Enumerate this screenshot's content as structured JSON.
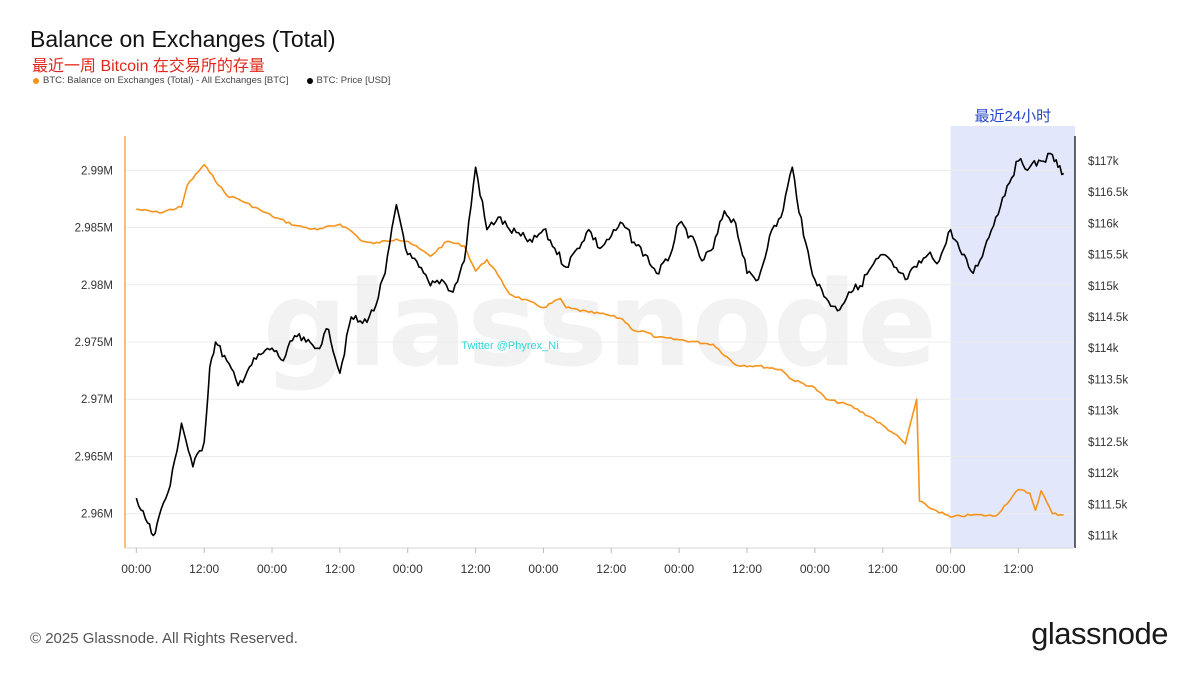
{
  "title": "Balance on Exchanges (Total)",
  "subtitle": "最近一周 Bitcoin 在交易所的存量",
  "footer": "© 2025 Glassnode. All Rights Reserved.",
  "brand": "glassnode",
  "watermark": "glassnode",
  "annotation_credit": "Twitter @Phyrex_Ni",
  "highlight_label": "最近24小时",
  "colors": {
    "balance": "#f7931a",
    "price": "#000000",
    "highlight": "#e3e7fb",
    "subtitle": "#e0281c",
    "highlight_label": "#2547c9",
    "credit": "#2fd6d6"
  },
  "chart_data": {
    "type": "line",
    "title": "Balance on Exchanges (Total)",
    "subtitle": "最近一周 Bitcoin 在交易所的存量",
    "x_tick_labels": [
      "00:00",
      "12:00",
      "00:00",
      "12:00",
      "00:00",
      "12:00",
      "00:00",
      "12:00",
      "00:00",
      "12:00",
      "00:00",
      "12:00",
      "00:00",
      "12:00"
    ],
    "x_range_hours": [
      -2,
      166
    ],
    "highlight_range_hours": [
      144,
      166
    ],
    "y_left": {
      "ticks": [
        2.96,
        2.965,
        2.97,
        2.975,
        2.98,
        2.985,
        2.99
      ],
      "tick_labels": [
        "2.96M",
        "2.965M",
        "2.97M",
        "2.975M",
        "2.98M",
        "2.985M",
        "2.99M"
      ],
      "range": [
        2.957,
        2.993
      ]
    },
    "y_right": {
      "ticks": [
        111000,
        111500,
        112000,
        112500,
        113000,
        113500,
        114000,
        114500,
        115000,
        115500,
        116000,
        116500,
        117000
      ],
      "tick_labels": [
        "$111k",
        "$111.5k",
        "$112k",
        "$112.5k",
        "$113k",
        "$113.5k",
        "$114k",
        "$114.5k",
        "$115k",
        "$115.5k",
        "$116k",
        "$116.5k",
        "$117k"
      ],
      "range": [
        110800,
        117400
      ]
    },
    "grid": true,
    "legend_position": "top-left",
    "series": [
      {
        "name": "BTC: Balance on Exchanges (Total) - All Exchanges [BTC]",
        "axis": "left",
        "color": "#f7931a",
        "unit": "M BTC",
        "x": [
          0,
          4,
          8,
          9,
          12,
          13,
          16,
          18,
          22,
          24,
          28,
          32,
          36,
          38,
          40,
          42,
          46,
          48,
          52,
          55,
          58,
          60,
          62,
          64,
          66,
          72,
          75,
          76,
          80,
          83,
          86,
          88,
          90,
          92,
          96,
          102,
          106,
          110,
          114,
          116,
          120,
          122,
          126,
          130,
          134,
          136,
          138,
          138.5,
          140,
          144,
          148,
          152,
          156,
          158,
          159,
          160,
          162,
          164
        ],
        "y": [
          2.9866,
          2.9863,
          2.9868,
          2.9887,
          2.9905,
          2.9898,
          2.9878,
          2.9875,
          2.9865,
          2.986,
          2.9852,
          2.9848,
          2.9853,
          2.9847,
          2.9838,
          2.9836,
          2.984,
          2.9838,
          2.9825,
          2.9838,
          2.9834,
          2.9812,
          2.9822,
          2.9808,
          2.9792,
          2.978,
          2.9788,
          2.978,
          2.9776,
          2.9774,
          2.977,
          2.976,
          2.9759,
          2.9754,
          2.9752,
          2.9748,
          2.973,
          2.9729,
          2.9726,
          2.9717,
          2.971,
          2.97,
          2.9695,
          2.9684,
          2.967,
          2.9661,
          2.97,
          2.9611,
          2.9606,
          2.9597,
          2.9599,
          2.9598,
          2.9621,
          2.9618,
          2.9603,
          2.962,
          2.96,
          2.9599
        ]
      },
      {
        "name": "BTC: Price [USD]",
        "axis": "right",
        "color": "#000000",
        "unit": "USD",
        "x": [
          0,
          2,
          3,
          4,
          6,
          8,
          10,
          12,
          13,
          14,
          16,
          18,
          20,
          22,
          24,
          26,
          28,
          30,
          32,
          34,
          36,
          38,
          40,
          42,
          44,
          46,
          48,
          50,
          52,
          54,
          56,
          58,
          60,
          62,
          64,
          66,
          68,
          70,
          72,
          74,
          76,
          78,
          80,
          82,
          84,
          86,
          88,
          90,
          92,
          94,
          96,
          98,
          100,
          102,
          104,
          106,
          108,
          110,
          112,
          114,
          116,
          118,
          120,
          122,
          124,
          126,
          128,
          130,
          132,
          134,
          136,
          138,
          140,
          142,
          144,
          146,
          148,
          150,
          152,
          154,
          156,
          158,
          160,
          162,
          163,
          164
        ],
        "y": [
          111600,
          111200,
          111000,
          111300,
          111800,
          112800,
          112100,
          112500,
          113700,
          114100,
          113800,
          113400,
          113700,
          113900,
          114000,
          113800,
          114200,
          114100,
          114000,
          114300,
          113600,
          114500,
          114400,
          114600,
          115200,
          116300,
          115500,
          115300,
          115000,
          115100,
          114900,
          115400,
          116900,
          115900,
          116100,
          115900,
          115800,
          115700,
          115900,
          115600,
          115300,
          115600,
          115900,
          115600,
          115800,
          116000,
          115700,
          115500,
          115200,
          115400,
          116000,
          115800,
          115400,
          115600,
          116200,
          116000,
          115200,
          115100,
          115800,
          116100,
          116900,
          115800,
          115100,
          114800,
          114600,
          114900,
          115000,
          115300,
          115500,
          115300,
          115100,
          115300,
          115500,
          115400,
          115900,
          115500,
          115200,
          115600,
          116100,
          116600,
          117000,
          116900,
          117000,
          117100,
          116900,
          116800
        ]
      }
    ]
  }
}
